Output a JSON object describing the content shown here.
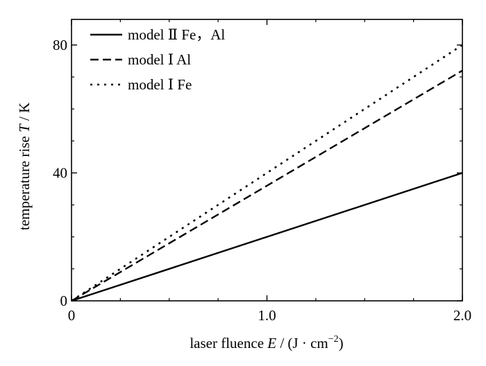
{
  "chart_data": {
    "type": "line",
    "xlabel": {
      "main": "laser fluence ",
      "var": "E",
      "unit": " / (J · cm",
      "sup": "−2",
      "close": ")"
    },
    "ylabel": {
      "main": "temperature rise ",
      "var": "T",
      "unit": " / K"
    },
    "xlim": [
      0,
      2.0
    ],
    "ylim": [
      0,
      88
    ],
    "x_ticks": [
      {
        "value": 0,
        "label": "0"
      },
      {
        "value": 1.0,
        "label": "1.0"
      },
      {
        "value": 2.0,
        "label": "2.0"
      }
    ],
    "y_ticks": [
      {
        "value": 0,
        "label": "0"
      },
      {
        "value": 40,
        "label": "40"
      },
      {
        "value": 80,
        "label": "80"
      }
    ],
    "x_minor_step": 0.25,
    "y_minor_step": 10,
    "grid": false,
    "legend_position": "top-left",
    "series": [
      {
        "name": "model Ⅱ Fe，Al",
        "style": "solid",
        "x": [
          0,
          2.0
        ],
        "y": [
          0,
          40
        ]
      },
      {
        "name": "model Ⅰ Al",
        "style": "dashed",
        "x": [
          0,
          2.0
        ],
        "y": [
          0,
          72
        ]
      },
      {
        "name": "model Ⅰ Fe",
        "style": "dotted",
        "x": [
          0,
          2.0
        ],
        "y": [
          0,
          80
        ]
      }
    ],
    "colors": {
      "line": "#000000",
      "background": "#ffffff"
    }
  }
}
